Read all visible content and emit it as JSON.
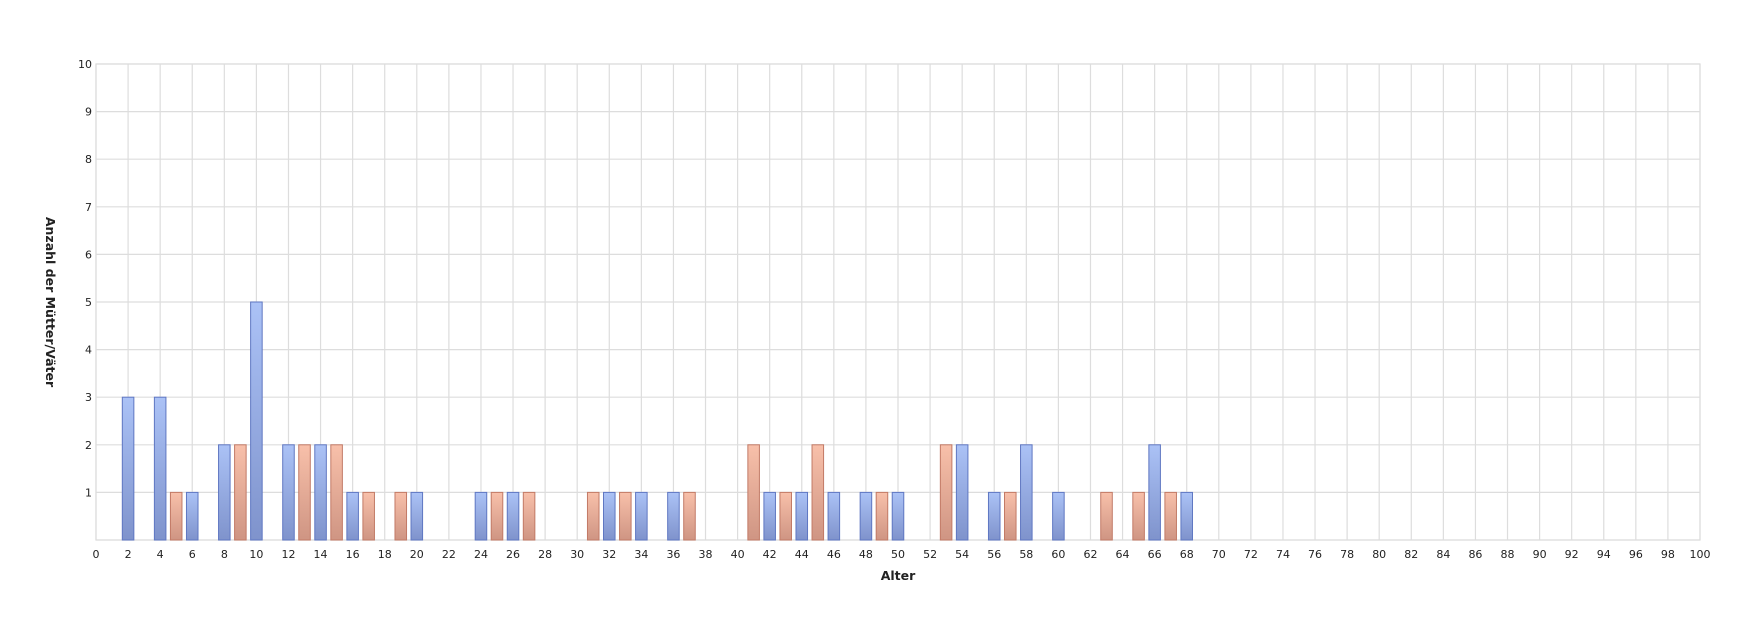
{
  "chart_data": {
    "type": "bar",
    "title": "",
    "xlabel": "Alter",
    "ylabel": "Anzahl der Mütter/Väter",
    "xlim": [
      0,
      100
    ],
    "ylim": [
      0,
      10
    ],
    "x_tick_step": 2,
    "y_tick_step": 1,
    "grid": true,
    "legend": "none",
    "colors": {
      "blue_fill": "#a8bdf2",
      "blue_stroke": "#5f77c2",
      "orange_fill": "#f6b9a4",
      "orange_stroke": "#c27a66"
    },
    "series": [
      {
        "color_key": "blue",
        "points": [
          {
            "x": 2,
            "y": 3
          },
          {
            "x": 4,
            "y": 3
          },
          {
            "x": 6,
            "y": 1
          },
          {
            "x": 8,
            "y": 2
          },
          {
            "x": 10,
            "y": 5
          },
          {
            "x": 12,
            "y": 2
          },
          {
            "x": 14,
            "y": 2
          },
          {
            "x": 16,
            "y": 1
          },
          {
            "x": 20,
            "y": 1
          },
          {
            "x": 24,
            "y": 1
          },
          {
            "x": 26,
            "y": 1
          },
          {
            "x": 32,
            "y": 1
          },
          {
            "x": 34,
            "y": 1
          },
          {
            "x": 36,
            "y": 1
          },
          {
            "x": 42,
            "y": 1
          },
          {
            "x": 44,
            "y": 1
          },
          {
            "x": 46,
            "y": 1
          },
          {
            "x": 48,
            "y": 1
          },
          {
            "x": 50,
            "y": 1
          },
          {
            "x": 54,
            "y": 2
          },
          {
            "x": 56,
            "y": 1
          },
          {
            "x": 58,
            "y": 2
          },
          {
            "x": 60,
            "y": 1
          },
          {
            "x": 66,
            "y": 2
          },
          {
            "x": 68,
            "y": 1
          }
        ]
      },
      {
        "color_key": "orange",
        "points": [
          {
            "x": 5,
            "y": 1
          },
          {
            "x": 9,
            "y": 2
          },
          {
            "x": 13,
            "y": 2
          },
          {
            "x": 15,
            "y": 2
          },
          {
            "x": 17,
            "y": 1
          },
          {
            "x": 19,
            "y": 1
          },
          {
            "x": 25,
            "y": 1
          },
          {
            "x": 27,
            "y": 1
          },
          {
            "x": 31,
            "y": 1
          },
          {
            "x": 33,
            "y": 1
          },
          {
            "x": 37,
            "y": 1
          },
          {
            "x": 41,
            "y": 2
          },
          {
            "x": 43,
            "y": 1
          },
          {
            "x": 45,
            "y": 2
          },
          {
            "x": 49,
            "y": 1
          },
          {
            "x": 53,
            "y": 2
          },
          {
            "x": 57,
            "y": 1
          },
          {
            "x": 63,
            "y": 1
          },
          {
            "x": 65,
            "y": 1
          },
          {
            "x": 67,
            "y": 1
          }
        ]
      }
    ]
  }
}
